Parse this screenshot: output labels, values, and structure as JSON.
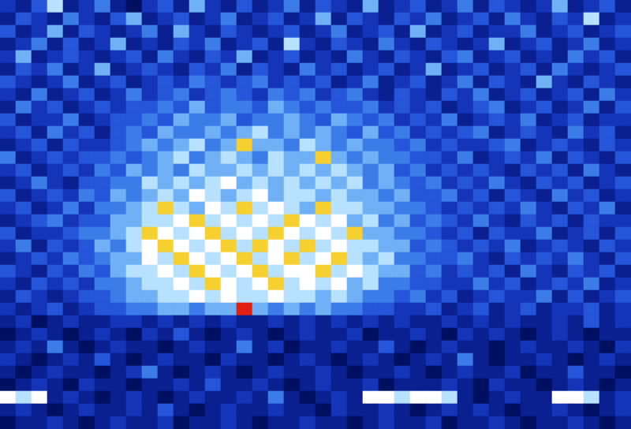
{
  "chart_data": {
    "type": "heatmap",
    "tick_labels": false,
    "zlim": [
      0,
      10
    ],
    "cells": [
      [
        3,
        2,
        4,
        7,
        2,
        3,
        5,
        2,
        1,
        3,
        4,
        2,
        6,
        3,
        2,
        4,
        2,
        3,
        5,
        2,
        4,
        3,
        2,
        6,
        2,
        3,
        4,
        2,
        3,
        5,
        2,
        4,
        3,
        2,
        3,
        6,
        2,
        3,
        4,
        2
      ],
      [
        2,
        4,
        3,
        2,
        5,
        3,
        2,
        4,
        6,
        2,
        3,
        4,
        2,
        3,
        5,
        2,
        3,
        4,
        2,
        3,
        6,
        2,
        4,
        3,
        2,
        4,
        3,
        5,
        2,
        3,
        4,
        2,
        5,
        3,
        2,
        4,
        3,
        7,
        2,
        3
      ],
      [
        4,
        2,
        3,
        6,
        2,
        4,
        3,
        2,
        3,
        5,
        2,
        6,
        3,
        2,
        4,
        3,
        2,
        3,
        4,
        2,
        3,
        5,
        2,
        3,
        4,
        2,
        6,
        2,
        3,
        4,
        2,
        3,
        3,
        5,
        2,
        3,
        4,
        2,
        3,
        4
      ],
      [
        2,
        3,
        5,
        2,
        4,
        2,
        3,
        6,
        2,
        3,
        2,
        4,
        3,
        5,
        2,
        3,
        4,
        2,
        7,
        3,
        2,
        4,
        3,
        2,
        5,
        3,
        2,
        4,
        3,
        2,
        3,
        6,
        2,
        3,
        4,
        2,
        3,
        5,
        2,
        3
      ],
      [
        3,
        6,
        2,
        3,
        4,
        3,
        2,
        3,
        4,
        2,
        5,
        3,
        2,
        4,
        3,
        6,
        2,
        3,
        4,
        2,
        3,
        2,
        5,
        3,
        2,
        4,
        3,
        2,
        4,
        5,
        2,
        3,
        4,
        2,
        3,
        2,
        5,
        3,
        4,
        2
      ],
      [
        2,
        4,
        3,
        5,
        2,
        3,
        6,
        2,
        3,
        4,
        3,
        2,
        4,
        3,
        5,
        2,
        4,
        3,
        2,
        5,
        3,
        4,
        2,
        3,
        4,
        2,
        3,
        6,
        2,
        3,
        4,
        2,
        3,
        4,
        2,
        5,
        3,
        2,
        3,
        4
      ],
      [
        4,
        3,
        2,
        3,
        5,
        2,
        3,
        4,
        2,
        3,
        4,
        3,
        5,
        4,
        3,
        4,
        5,
        3,
        4,
        3,
        4,
        2,
        3,
        5,
        2,
        3,
        4,
        2,
        3,
        5,
        2,
        4,
        3,
        2,
        6,
        3,
        2,
        4,
        3,
        2
      ],
      [
        3,
        2,
        5,
        2,
        3,
        4,
        2,
        3,
        5,
        3,
        4,
        5,
        3,
        4,
        5,
        4,
        3,
        5,
        4,
        5,
        3,
        4,
        5,
        3,
        2,
        4,
        3,
        2,
        4,
        3,
        5,
        2,
        3,
        4,
        2,
        3,
        4,
        2,
        5,
        3
      ],
      [
        2,
        5,
        3,
        4,
        2,
        3,
        4,
        3,
        4,
        4,
        5,
        4,
        6,
        4,
        5,
        5,
        4,
        6,
        5,
        4,
        5,
        4,
        4,
        5,
        3,
        4,
        3,
        4,
        2,
        3,
        4,
        5,
        2,
        3,
        4,
        2,
        3,
        5,
        2,
        4
      ],
      [
        4,
        2,
        3,
        3,
        5,
        2,
        3,
        4,
        4,
        5,
        4,
        6,
        5,
        5,
        6,
        4,
        5,
        5,
        6,
        5,
        4,
        6,
        5,
        4,
        5,
        3,
        4,
        3,
        5,
        2,
        3,
        4,
        3,
        5,
        2,
        3,
        4,
        2,
        3,
        3
      ],
      [
        3,
        4,
        2,
        5,
        3,
        4,
        2,
        4,
        5,
        4,
        6,
        5,
        5,
        6,
        5,
        6,
        7,
        5,
        6,
        5,
        6,
        5,
        4,
        6,
        4,
        5,
        3,
        4,
        3,
        4,
        5,
        2,
        3,
        4,
        3,
        2,
        5,
        3,
        4,
        2
      ],
      [
        2,
        3,
        4,
        2,
        4,
        3,
        3,
        4,
        5,
        6,
        5,
        6,
        7,
        5,
        6,
        9,
        6,
        6,
        5,
        7,
        6,
        5,
        6,
        5,
        5,
        4,
        5,
        3,
        4,
        3,
        3,
        4,
        5,
        2,
        3,
        4,
        3,
        2,
        4,
        3
      ],
      [
        5,
        2,
        3,
        4,
        3,
        4,
        4,
        5,
        4,
        5,
        6,
        7,
        5,
        6,
        7,
        6,
        5,
        7,
        6,
        6,
        9,
        6,
        5,
        6,
        5,
        5,
        4,
        4,
        3,
        5,
        2,
        3,
        4,
        3,
        5,
        2,
        4,
        3,
        2,
        4
      ],
      [
        3,
        4,
        2,
        3,
        4,
        3,
        5,
        4,
        6,
        5,
        6,
        5,
        7,
        6,
        6,
        7,
        6,
        7,
        6,
        7,
        6,
        7,
        6,
        5,
        6,
        4,
        5,
        3,
        4,
        3,
        4,
        3,
        2,
        4,
        3,
        4,
        2,
        5,
        3,
        2
      ],
      [
        2,
        3,
        5,
        3,
        2,
        4,
        4,
        5,
        5,
        7,
        6,
        7,
        6,
        7,
        8,
        6,
        7,
        6,
        7,
        6,
        7,
        6,
        7,
        5,
        6,
        5,
        4,
        5,
        3,
        4,
        3,
        5,
        3,
        2,
        4,
        3,
        4,
        2,
        3,
        4
      ],
      [
        4,
        2,
        3,
        4,
        3,
        5,
        4,
        6,
        5,
        6,
        7,
        6,
        8,
        7,
        6,
        7,
        8,
        6,
        7,
        7,
        6,
        7,
        6,
        6,
        5,
        6,
        4,
        4,
        5,
        3,
        4,
        2,
        4,
        3,
        2,
        5,
        3,
        4,
        2,
        3
      ],
      [
        3,
        4,
        2,
        3,
        5,
        3,
        5,
        5,
        6,
        7,
        9,
        7,
        6,
        8,
        7,
        9,
        7,
        8,
        7,
        6,
        9,
        7,
        7,
        6,
        6,
        5,
        5,
        4,
        3,
        4,
        3,
        4,
        3,
        5,
        3,
        2,
        4,
        3,
        5,
        2
      ],
      [
        2,
        3,
        4,
        5,
        3,
        4,
        4,
        6,
        6,
        7,
        7,
        8,
        9,
        7,
        8,
        7,
        8,
        7,
        9,
        8,
        7,
        8,
        6,
        7,
        5,
        6,
        4,
        5,
        4,
        3,
        5,
        3,
        2,
        4,
        3,
        4,
        2,
        4,
        3,
        3
      ],
      [
        4,
        2,
        3,
        3,
        4,
        5,
        5,
        6,
        7,
        9,
        8,
        7,
        8,
        9,
        7,
        8,
        7,
        9,
        8,
        7,
        8,
        7,
        9,
        6,
        6,
        5,
        5,
        4,
        3,
        4,
        2,
        4,
        3,
        3,
        5,
        2,
        3,
        4,
        2,
        4
      ],
      [
        3,
        5,
        2,
        4,
        3,
        4,
        6,
        5,
        7,
        8,
        9,
        8,
        7,
        8,
        9,
        7,
        9,
        8,
        7,
        9,
        7,
        8,
        7,
        7,
        6,
        6,
        4,
        5,
        4,
        3,
        4,
        3,
        5,
        2,
        3,
        4,
        3,
        2,
        4,
        3
      ],
      [
        2,
        3,
        4,
        3,
        5,
        4,
        5,
        6,
        6,
        8,
        7,
        9,
        8,
        7,
        8,
        9,
        7,
        8,
        9,
        7,
        8,
        9,
        7,
        6,
        7,
        5,
        5,
        4,
        4,
        5,
        3,
        2,
        4,
        3,
        4,
        3,
        5,
        3,
        2,
        4
      ],
      [
        4,
        3,
        2,
        4,
        3,
        5,
        4,
        6,
        7,
        7,
        8,
        7,
        9,
        8,
        7,
        8,
        9,
        7,
        8,
        8,
        9,
        7,
        8,
        7,
        6,
        6,
        4,
        5,
        3,
        4,
        3,
        4,
        2,
        5,
        3,
        2,
        4,
        3,
        4,
        2
      ],
      [
        3,
        2,
        4,
        3,
        4,
        3,
        5,
        5,
        6,
        7,
        7,
        8,
        7,
        9,
        8,
        7,
        8,
        9,
        7,
        8,
        7,
        8,
        6,
        7,
        5,
        5,
        4,
        4,
        3,
        3,
        5,
        3,
        4,
        2,
        3,
        4,
        3,
        5,
        2,
        3
      ],
      [
        2,
        4,
        3,
        2,
        3,
        4,
        4,
        5,
        6,
        6,
        7,
        7,
        8,
        7,
        8,
        7,
        7,
        8,
        7,
        7,
        6,
        7,
        6,
        5,
        5,
        4,
        5,
        3,
        4,
        2,
        3,
        4,
        3,
        3,
        5,
        2,
        4,
        2,
        3,
        4
      ],
      [
        3,
        2,
        3,
        4,
        2,
        3,
        4,
        4,
        5,
        5,
        6,
        6,
        5,
        6,
        6,
        10,
        6,
        5,
        6,
        5,
        6,
        5,
        5,
        4,
        4,
        3,
        3,
        4,
        2,
        3,
        4,
        2,
        3,
        4,
        2,
        3,
        3,
        4,
        2,
        3
      ],
      [
        2,
        3,
        1,
        2,
        3,
        2,
        2,
        3,
        3,
        2,
        3,
        2,
        3,
        2,
        3,
        2,
        2,
        3,
        2,
        3,
        2,
        3,
        2,
        3,
        2,
        3,
        2,
        2,
        3,
        2,
        3,
        2,
        3,
        2,
        2,
        3,
        2,
        4,
        2,
        3
      ],
      [
        1,
        2,
        3,
        2,
        1,
        2,
        3,
        2,
        1,
        3,
        2,
        4,
        2,
        1,
        2,
        3,
        2,
        1,
        2,
        3,
        2,
        2,
        3,
        1,
        2,
        2,
        3,
        2,
        1,
        3,
        2,
        3,
        2,
        1,
        2,
        3,
        2,
        1,
        2,
        2
      ],
      [
        2,
        3,
        2,
        5,
        2,
        1,
        2,
        3,
        2,
        2,
        1,
        2,
        3,
        2,
        2,
        5,
        2,
        3,
        1,
        2,
        2,
        3,
        2,
        2,
        4,
        2,
        1,
        2,
        3,
        2,
        2,
        1,
        2,
        3,
        2,
        2,
        3,
        2,
        1,
        3
      ],
      [
        3,
        2,
        1,
        2,
        3,
        2,
        4,
        2,
        1,
        2,
        3,
        2,
        2,
        1,
        3,
        2,
        2,
        1,
        2,
        3,
        2,
        1,
        2,
        3,
        2,
        1,
        2,
        3,
        2,
        5,
        2,
        1,
        2,
        2,
        3,
        2,
        1,
        2,
        3,
        2
      ],
      [
        2,
        1,
        2,
        3,
        2,
        2,
        1,
        2,
        3,
        5,
        2,
        1,
        2,
        3,
        2,
        1,
        2,
        3,
        2,
        2,
        3,
        2,
        1,
        2,
        2,
        3,
        2,
        1,
        2,
        3,
        2,
        2,
        3,
        1,
        2,
        2,
        4,
        2,
        2,
        1
      ],
      [
        1,
        2,
        3,
        2,
        1,
        3,
        2,
        2,
        1,
        2,
        2,
        3,
        2,
        4,
        2,
        2,
        3,
        2,
        1,
        2,
        3,
        2,
        2,
        3,
        1,
        2,
        2,
        2,
        3,
        2,
        1,
        3,
        2,
        2,
        1,
        2,
        3,
        2,
        1,
        2
      ],
      [
        8,
        7,
        8,
        2,
        3,
        2,
        1,
        2,
        3,
        2,
        1,
        2,
        3,
        2,
        2,
        3,
        2,
        5,
        2,
        1,
        2,
        3,
        2,
        8,
        8,
        7,
        8,
        8,
        7,
        2,
        1,
        2,
        3,
        2,
        2,
        8,
        8,
        7,
        2,
        3
      ],
      [
        2,
        3,
        2,
        1,
        2,
        3,
        2,
        2,
        3,
        2,
        4,
        2,
        1,
        2,
        3,
        2,
        2,
        3,
        2,
        2,
        1,
        3,
        2,
        2,
        3,
        2,
        1,
        2,
        3,
        2,
        3,
        2,
        1,
        2,
        2,
        3,
        2,
        1,
        2,
        3
      ],
      [
        1,
        2,
        2,
        3,
        2,
        1,
        2,
        3,
        2,
        2,
        3,
        1,
        2,
        2,
        3,
        2,
        1,
        2,
        2,
        3,
        2,
        2,
        1,
        2,
        3,
        2,
        2,
        3,
        1,
        2,
        2,
        3,
        2,
        1,
        2,
        2,
        3,
        2,
        1,
        2
      ]
    ]
  }
}
